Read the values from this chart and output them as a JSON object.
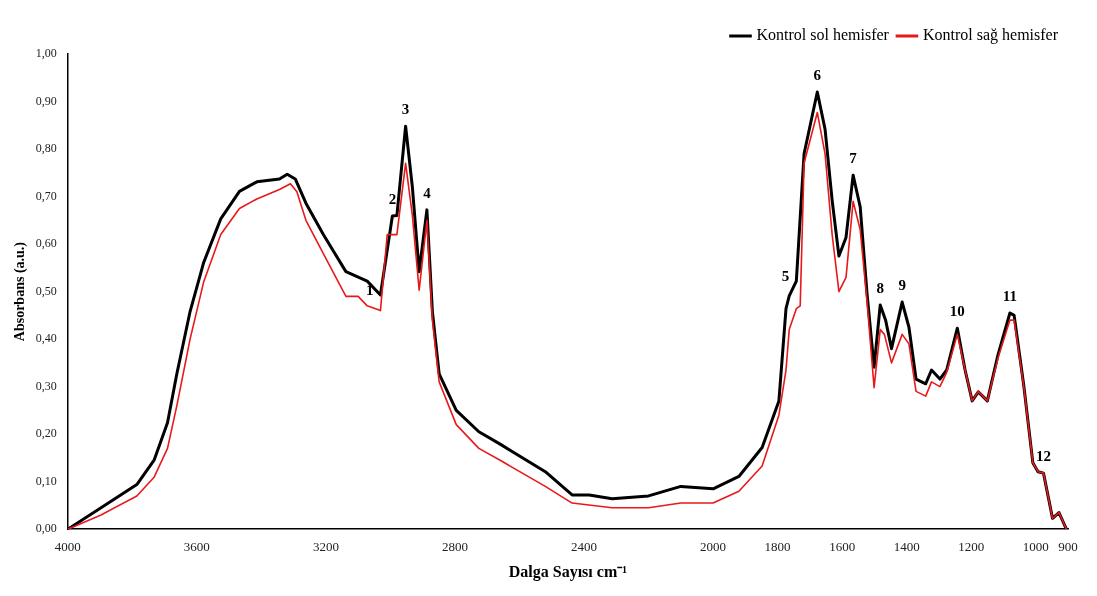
{
  "chart_data": {
    "type": "line",
    "xlabel": "Dalga Sayısı cm⁻¹",
    "ylabel": "Absorbans (a.u.)",
    "xlim": [
      4000,
      900
    ],
    "ylim": [
      0,
      1
    ],
    "xticks": [
      4000,
      3600,
      3200,
      2800,
      2400,
      2000,
      1800,
      1600,
      1400,
      1200,
      1000,
      900
    ],
    "yticks": [
      {
        "value": 0,
        "label": "0,00"
      },
      {
        "value": 0.1,
        "label": "0,10"
      },
      {
        "value": 0.2,
        "label": "0,20"
      },
      {
        "value": 0.3,
        "label": "0,30"
      },
      {
        "value": 0.4,
        "label": "0,40"
      },
      {
        "value": 0.5,
        "label": "0,50"
      },
      {
        "value": 0.6,
        "label": "0,60"
      },
      {
        "value": 0.7,
        "label": "0,70"
      },
      {
        "value": 0.8,
        "label": "0,80"
      },
      {
        "value": 0.9,
        "label": "0,90"
      },
      {
        "value": 1,
        "label": "1,00"
      }
    ],
    "grid": false,
    "legend": "top right",
    "marker": "none",
    "line_style": "solid",
    "series": [
      {
        "name": "Kontrol sol hemisfer",
        "color": "#000000",
        "x": [
          4000,
          3897,
          3786,
          3732,
          3691,
          3662,
          3621,
          3579,
          3526,
          3468,
          3414,
          3344,
          3320,
          3295,
          3262,
          3208,
          3138,
          3072,
          3031,
          2994,
          2980,
          2953,
          2932,
          2911,
          2887,
          2870,
          2849,
          2796,
          2726,
          2660,
          2520,
          2437,
          2384,
          2313,
          2200,
          2100,
          2000,
          1920,
          1848,
          1796,
          1774,
          1764,
          1742,
          1718,
          1677,
          1653,
          1631,
          1610,
          1588,
          1566,
          1544,
          1523,
          1501,
          1482,
          1465,
          1447,
          1414,
          1393,
          1371,
          1341,
          1323,
          1297,
          1276,
          1243,
          1219,
          1197,
          1178,
          1150,
          1117,
          1080,
          1067,
          1037,
          1009,
          993,
          976,
          948,
          928,
          905
        ],
        "values": [
          0,
          0.045,
          0.094,
          0.146,
          0.224,
          0.327,
          0.458,
          0.561,
          0.653,
          0.711,
          0.731,
          0.737,
          0.747,
          0.737,
          0.686,
          0.62,
          0.542,
          0.522,
          0.493,
          0.659,
          0.66,
          0.848,
          0.72,
          0.542,
          0.672,
          0.458,
          0.327,
          0.25,
          0.205,
          0.179,
          0.121,
          0.072,
          0.072,
          0.064,
          0.07,
          0.09,
          0.085,
          0.111,
          0.172,
          0.27,
          0.464,
          0.491,
          0.522,
          0.79,
          0.92,
          0.842,
          0.692,
          0.575,
          0.614,
          0.745,
          0.678,
          0.497,
          0.341,
          0.472,
          0.439,
          0.38,
          0.478,
          0.425,
          0.316,
          0.306,
          0.335,
          0.316,
          0.335,
          0.423,
          0.335,
          0.27,
          0.289,
          0.27,
          0.367,
          0.455,
          0.45,
          0.302,
          0.14,
          0.121,
          0.118,
          0.023,
          0.035,
          0
        ]
      },
      {
        "name": "Kontrol sağ hemisfer",
        "color": "#e8191a",
        "x": [
          4000,
          3897,
          3786,
          3732,
          3691,
          3662,
          3621,
          3579,
          3526,
          3468,
          3414,
          3344,
          3310,
          3290,
          3262,
          3208,
          3138,
          3100,
          3072,
          3031,
          3010,
          2980,
          2953,
          2932,
          2911,
          2887,
          2870,
          2849,
          2796,
          2726,
          2660,
          2520,
          2437,
          2313,
          2200,
          2100,
          2000,
          1920,
          1848,
          1796,
          1774,
          1764,
          1742,
          1730,
          1718,
          1677,
          1653,
          1631,
          1610,
          1588,
          1566,
          1544,
          1523,
          1501,
          1482,
          1469,
          1447,
          1414,
          1393,
          1371,
          1341,
          1323,
          1297,
          1276,
          1243,
          1219,
          1197,
          1178,
          1150,
          1117,
          1080,
          1067,
          1037,
          1009,
          993,
          976,
          948,
          928,
          905
        ],
        "values": [
          0,
          0.03,
          0.07,
          0.11,
          0.17,
          0.26,
          0.4,
          0.52,
          0.62,
          0.675,
          0.695,
          0.715,
          0.727,
          0.71,
          0.65,
          0.58,
          0.49,
          0.49,
          0.47,
          0.46,
          0.62,
          0.62,
          0.77,
          0.66,
          0.503,
          0.65,
          0.44,
          0.31,
          0.22,
          0.17,
          0.145,
          0.09,
          0.055,
          0.045,
          0.045,
          0.055,
          0.055,
          0.08,
          0.133,
          0.24,
          0.335,
          0.42,
          0.464,
          0.47,
          0.77,
          0.877,
          0.79,
          0.62,
          0.5,
          0.53,
          0.69,
          0.63,
          0.48,
          0.298,
          0.42,
          0.41,
          0.35,
          0.41,
          0.39,
          0.29,
          0.28,
          0.31,
          0.3,
          0.33,
          0.41,
          0.335,
          0.27,
          0.29,
          0.27,
          0.36,
          0.44,
          0.44,
          0.3,
          0.14,
          0.121,
          0.118,
          0.023,
          0.035,
          0
        ]
      }
    ],
    "annotations": [
      {
        "text": "1",
        "x": 3031,
        "y": 0.493
      },
      {
        "text": "2",
        "x": 2994,
        "y": 0.659
      },
      {
        "text": "3",
        "x": 2953,
        "y": 0.848
      },
      {
        "text": "4",
        "x": 2887,
        "y": 0.672
      },
      {
        "text": "5",
        "x": 1742,
        "y": 0.522
      },
      {
        "text": "6",
        "x": 1677,
        "y": 0.92
      },
      {
        "text": "7",
        "x": 1566,
        "y": 0.745
      },
      {
        "text": "8",
        "x": 1482,
        "y": 0.472
      },
      {
        "text": "9",
        "x": 1414,
        "y": 0.478
      },
      {
        "text": "10",
        "x": 1243,
        "y": 0.423
      },
      {
        "text": "11",
        "x": 1080,
        "y": 0.455
      },
      {
        "text": "12",
        "x": 976,
        "y": 0.118
      }
    ]
  }
}
